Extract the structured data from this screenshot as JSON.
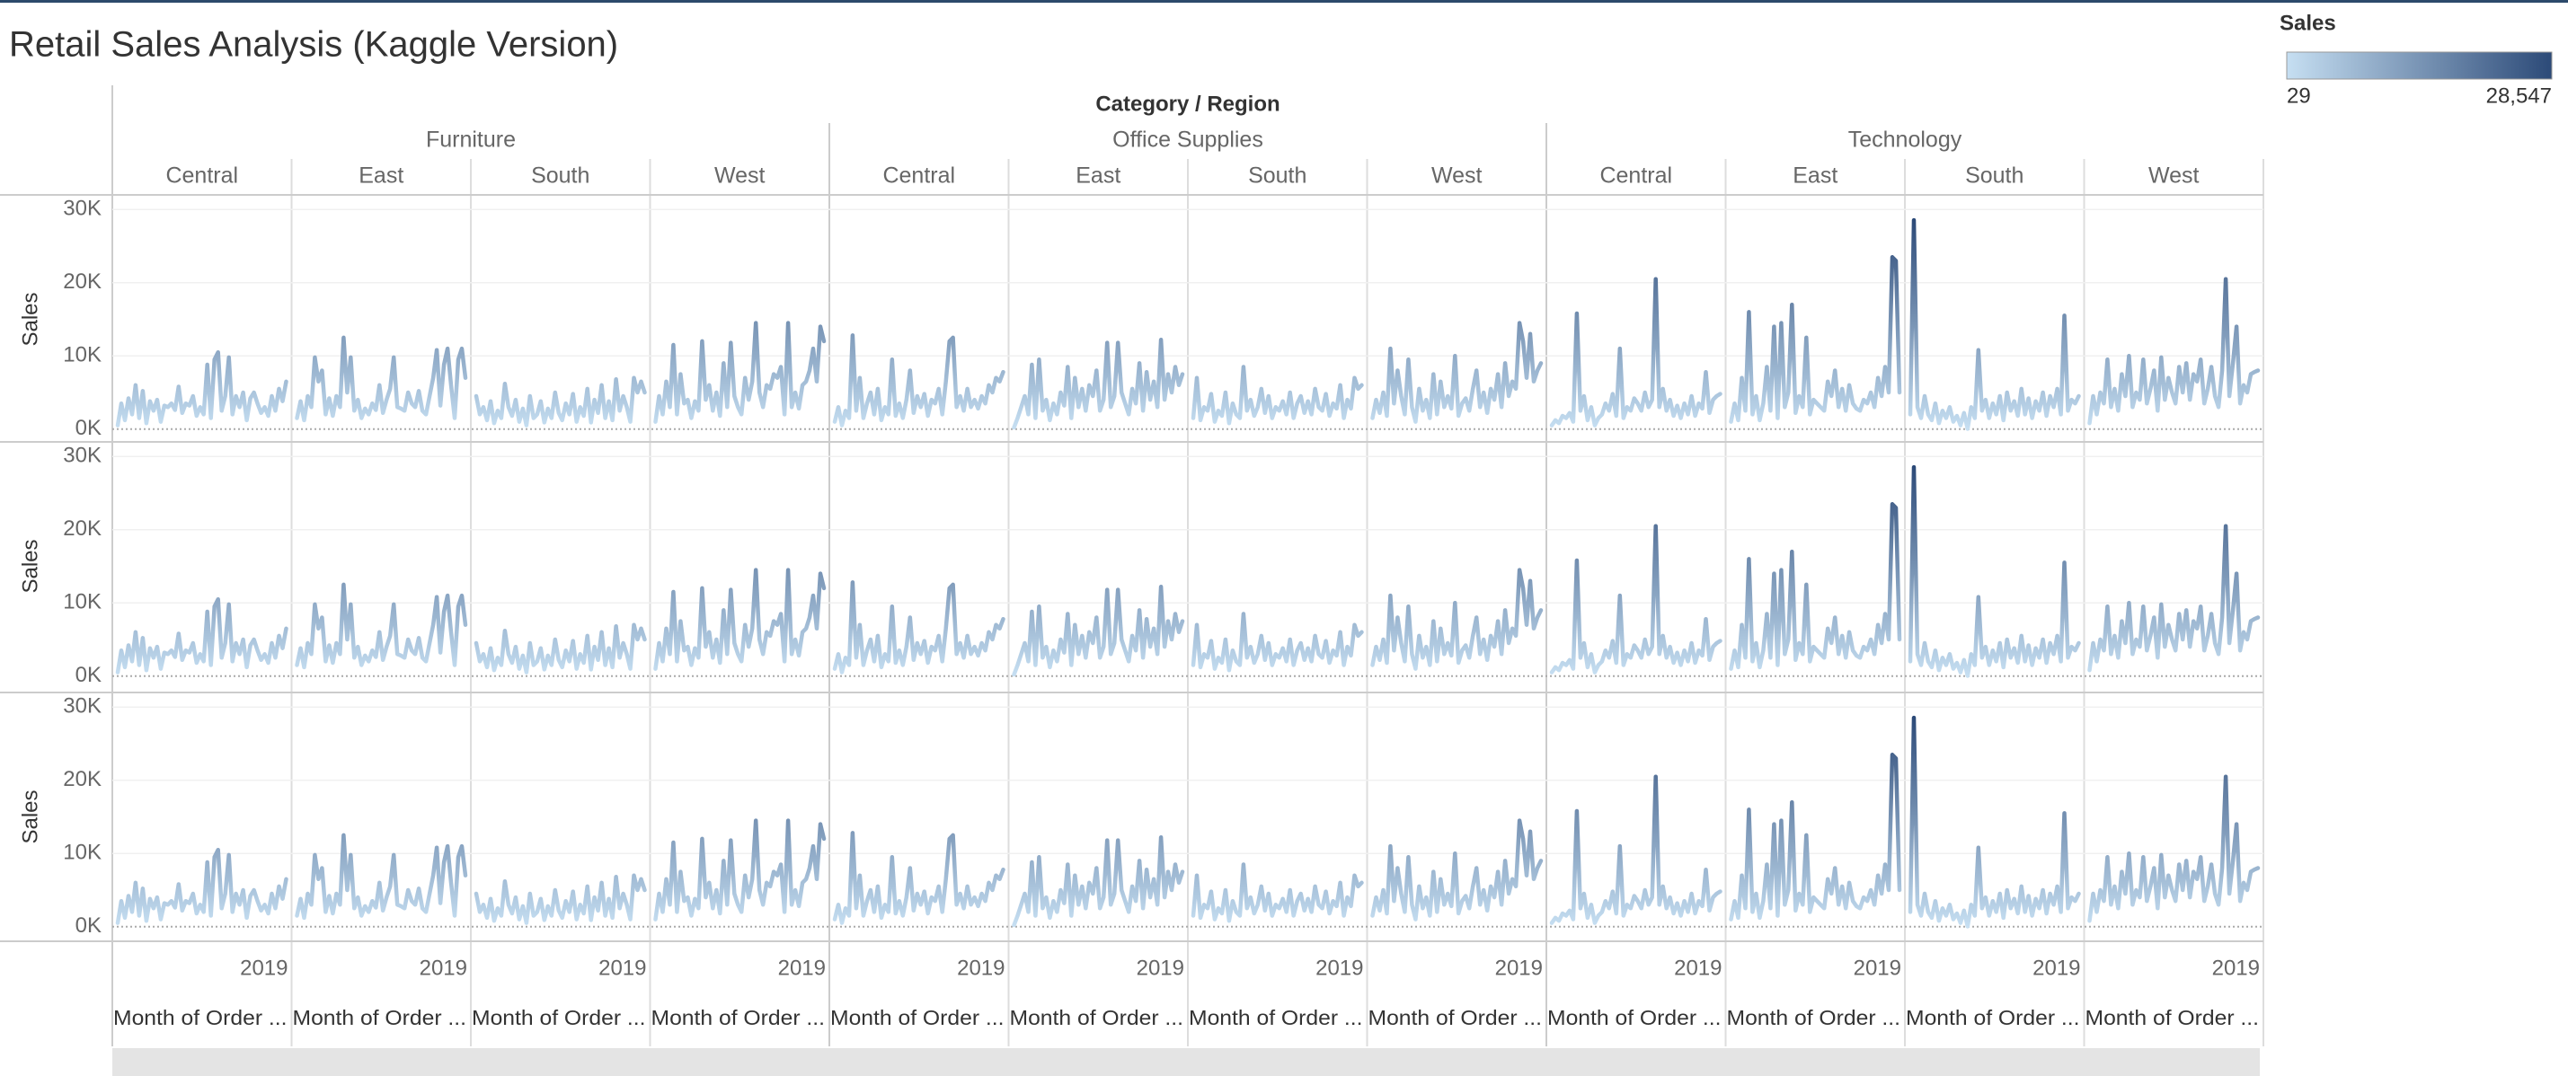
{
  "chart_data": {
    "type": "line",
    "title": "Retail Sales Analysis (Kaggle Version)",
    "column_header": "Category / Region",
    "groups": [
      {
        "name": "Furniture",
        "regions": [
          "Central",
          "East",
          "South",
          "West"
        ]
      },
      {
        "name": "Office Supplies",
        "regions": [
          "Central",
          "East",
          "South",
          "West"
        ]
      },
      {
        "name": "Technology",
        "regions": [
          "Central",
          "East",
          "South",
          "West"
        ]
      }
    ],
    "rows": [
      "Sales",
      "Sales",
      "Sales"
    ],
    "x_tick_label": "2019",
    "x_axis_label": "Month of Order ...",
    "ylim": [
      -2000,
      32000
    ],
    "yticks": [
      {
        "value": 0,
        "label": "0K"
      },
      {
        "value": 10000,
        "label": "10K"
      },
      {
        "value": 20000,
        "label": "20K"
      },
      {
        "value": 30000,
        "label": "30K"
      }
    ],
    "legend": {
      "title": "Sales",
      "min": {
        "value": 29,
        "label": "29"
      },
      "max": {
        "value": 28547,
        "label": "28,547"
      }
    },
    "color_range": [
      "#c6dff2",
      "#2c4a78"
    ],
    "series": [
      {
        "values": [
          500,
          3500,
          1200,
          4200,
          2000,
          6000,
          1500,
          5200,
          800,
          3800,
          2500,
          4000,
          1000,
          3200,
          3000,
          3500,
          2600,
          5800,
          2200,
          3500,
          3200,
          4500,
          1800,
          3000,
          2000,
          8800,
          1500,
          9500,
          10500,
          2500,
          4500,
          9800,
          2000,
          4500,
          3000,
          5000,
          1200,
          4200,
          5000,
          3500,
          2200,
          3000,
          1800,
          4500,
          2500,
          5500,
          3800,
          6500
        ]
      },
      {
        "values": [
          1500,
          3800,
          1200,
          4500,
          3000,
          9800,
          6500,
          8000,
          2000,
          4200,
          1800,
          4500,
          3000,
          12500,
          5000,
          9800,
          2500,
          4000,
          1500,
          2800,
          2000,
          3500,
          2600,
          6000,
          2200,
          4000,
          5500,
          9800,
          3000,
          2800,
          2500,
          5000,
          3500,
          3000,
          5200,
          2500,
          2000,
          4500,
          7000,
          10800,
          3200,
          8800,
          11000,
          6000,
          1500,
          9500,
          11000,
          7000
        ]
      },
      {
        "values": [
          4500,
          2000,
          3000,
          1200,
          3800,
          800,
          2500,
          1500,
          6200,
          3000,
          1800,
          4000,
          1000,
          2800,
          500,
          4500,
          1500,
          2000,
          3800,
          900,
          2800,
          1500,
          5000,
          2200,
          1200,
          3500,
          2000,
          4800,
          1000,
          3000,
          1800,
          5500,
          900,
          4000,
          2200,
          6000,
          1500,
          3800,
          1200,
          6800,
          2500,
          4500,
          3000,
          1000,
          7000,
          5000,
          6500,
          5000
        ]
      },
      {
        "values": [
          1000,
          4500,
          2000,
          6500,
          3000,
          11500,
          2000,
          7500,
          3500,
          4000,
          1500,
          3800,
          2500,
          12000,
          4000,
          6000,
          2500,
          5000,
          1800,
          9000,
          3000,
          11800,
          4500,
          3000,
          2000,
          7000,
          4000,
          6500,
          14500,
          5000,
          3000,
          6000,
          5500,
          7500,
          7000,
          8500,
          2000,
          14500,
          3000,
          5000,
          2800,
          6000,
          6500,
          8000,
          11000,
          6500,
          14000,
          12000
        ]
      },
      {
        "values": [
          1000,
          3000,
          500,
          2500,
          1500,
          12800,
          2500,
          7000,
          1500,
          3500,
          5000,
          2000,
          5500,
          1200,
          3000,
          2000,
          9500,
          1800,
          3500,
          1500,
          4000,
          8000,
          2200,
          4500,
          3000,
          4800,
          1800,
          4000,
          3500,
          5500,
          2000,
          6500,
          12000,
          12500,
          3000,
          4500,
          2500,
          5500,
          3000,
          4000,
          2800,
          4500,
          3500,
          6000,
          5000,
          7000,
          6500,
          7800
        ]
      },
      {
        "values": [
          200,
          1500,
          3000,
          4500,
          2000,
          8800,
          1500,
          9500,
          2500,
          4000,
          1200,
          3500,
          2000,
          5000,
          3200,
          8500,
          1500,
          7000,
          3000,
          5500,
          2500,
          6000,
          4500,
          8000,
          2500,
          4000,
          11800,
          3000,
          4500,
          11800,
          5000,
          3500,
          2000,
          5500,
          3500,
          9000,
          2500,
          7800,
          4000,
          6500,
          3000,
          12200,
          4000,
          7500,
          5000,
          8500,
          6000,
          7500
        ]
      },
      {
        "values": [
          1500,
          7000,
          1200,
          3000,
          2500,
          4800,
          1000,
          2500,
          1800,
          5000,
          800,
          3500,
          2000,
          1500,
          8500,
          2500,
          4000,
          1800,
          3000,
          5500,
          2200,
          4500,
          1500,
          3000,
          2500,
          3800,
          2000,
          5000,
          1500,
          3500,
          4500,
          2200,
          3800,
          2000,
          5500,
          3000,
          2500,
          4800,
          1800,
          3500,
          2800,
          6000,
          1500,
          4000,
          2800,
          7000,
          5500,
          6000
        ]
      },
      {
        "values": [
          1500,
          4000,
          2200,
          5000,
          1800,
          11000,
          3500,
          8000,
          4500,
          2000,
          9500,
          3000,
          1000,
          5500,
          2500,
          4000,
          1500,
          7500,
          2000,
          6500,
          3000,
          4500,
          2800,
          10000,
          1800,
          3500,
          4200,
          2500,
          5500,
          8000,
          3000,
          5000,
          2200,
          5500,
          4000,
          7500,
          3000,
          9000,
          4500,
          6500,
          5500,
          14500,
          12000,
          7000,
          13000,
          6500,
          8000,
          9000
        ]
      },
      {
        "values": [
          500,
          1200,
          800,
          1800,
          1500,
          2200,
          1000,
          15800,
          2500,
          4500,
          1200,
          3000,
          500,
          1500,
          2000,
          3500,
          2500,
          4800,
          1800,
          11000,
          1500,
          3000,
          2500,
          4200,
          3500,
          2500,
          5000,
          3000,
          4000,
          20500,
          3000,
          5500,
          2500,
          4000,
          1800,
          3200,
          1500,
          3500,
          2000,
          4500,
          1800,
          3500,
          2800,
          7800,
          2200,
          4000,
          4500,
          4800
        ]
      },
      {
        "values": [
          1000,
          3500,
          1200,
          7000,
          2500,
          16000,
          2000,
          4500,
          1200,
          3500,
          8500,
          2500,
          14000,
          1500,
          14500,
          3000,
          5000,
          17000,
          2200,
          4500,
          3000,
          12500,
          2000,
          4000,
          3500,
          3000,
          2500,
          6500,
          4500,
          8000,
          3000,
          5500,
          2500,
          6000,
          3500,
          2800,
          2500,
          4000,
          3500,
          5000,
          3000,
          7000,
          4500,
          8500,
          5000,
          23500,
          23000,
          5000
        ]
      },
      {
        "values": [
          2000,
          28547,
          3000,
          1500,
          4500,
          2000,
          1200,
          3500,
          800,
          2500,
          1500,
          3000,
          1000,
          1800,
          500,
          2200,
          29,
          3000,
          1500,
          10800,
          2500,
          4000,
          1500,
          3500,
          2000,
          4500,
          1200,
          5000,
          2500,
          3800,
          1800,
          5500,
          2000,
          4200,
          1500,
          3800,
          2500,
          5000,
          1800,
          4500,
          3000,
          5500,
          2000,
          15500,
          2500,
          4000,
          3500,
          4500
        ]
      },
      {
        "values": [
          800,
          4500,
          2000,
          5000,
          3500,
          9500,
          3000,
          5500,
          2500,
          7500,
          4500,
          10000,
          3000,
          5000,
          4000,
          9500,
          3500,
          5500,
          8000,
          2500,
          9800,
          4000,
          7000,
          5000,
          3500,
          8500,
          5000,
          9000,
          4000,
          7500,
          6500,
          9500,
          3500,
          5500,
          8500,
          4500,
          3000,
          8000,
          20500,
          4500,
          9000,
          14000,
          3500,
          6000,
          5000,
          7500,
          7800,
          8000
        ]
      }
    ]
  }
}
